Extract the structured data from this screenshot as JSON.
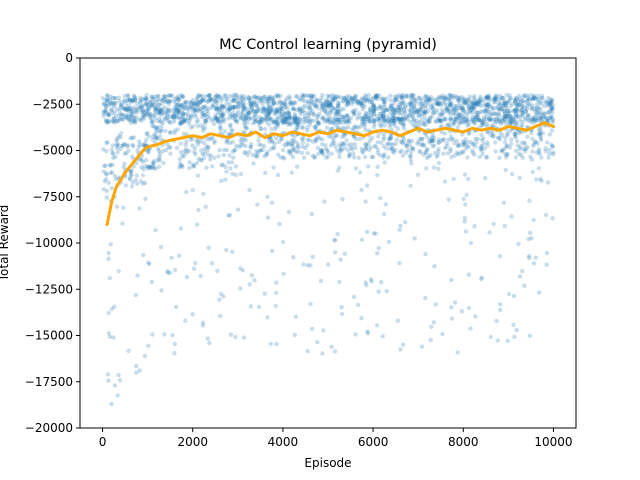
{
  "chart_data": {
    "type": "scatter",
    "title": "MC Control learning (pyramid)",
    "xlabel": "Episode",
    "ylabel": "Total Reward",
    "xlim": [
      -500,
      10500
    ],
    "ylim": [
      -20000,
      0
    ],
    "xticks": [
      0,
      2000,
      4000,
      6000,
      8000,
      10000
    ],
    "yticks": [
      0,
      -2500,
      -5000,
      -7500,
      -10000,
      -12500,
      -15000,
      -17500,
      -20000
    ],
    "grid": false,
    "series": [
      {
        "kind": "scatter",
        "color": "#1f77b4",
        "opacity": 0.25,
        "approximate": true,
        "episode_range": [
          0,
          10000
        ],
        "reward_clip": [
          -1500,
          -20000
        ],
        "segments": [
          {
            "x": [
              0,
              300
            ],
            "typical": -4500,
            "spread": 3500,
            "min": -20000
          },
          {
            "x": [
              300,
              1000
            ],
            "typical": -4000,
            "spread": 3000,
            "min": -19000
          },
          {
            "x": [
              1000,
              3000
            ],
            "typical": -3500,
            "spread": 2500,
            "min": -16000
          },
          {
            "x": [
              3000,
              10000
            ],
            "typical": -3200,
            "spread": 2200,
            "min": -16000
          }
        ]
      },
      {
        "kind": "line",
        "color": "#ffa500",
        "x": [
          100,
          200,
          300,
          400,
          500,
          600,
          700,
          800,
          900,
          1000,
          1200,
          1400,
          1600,
          1800,
          2000,
          2200,
          2400,
          2600,
          2800,
          3000,
          3200,
          3400,
          3600,
          3800,
          4000,
          4200,
          4400,
          4600,
          4800,
          5000,
          5200,
          5400,
          5600,
          5800,
          6000,
          6200,
          6400,
          6600,
          6800,
          7000,
          7200,
          7400,
          7600,
          7800,
          8000,
          8200,
          8400,
          8600,
          8800,
          9000,
          9200,
          9400,
          9600,
          9800,
          10000
        ],
        "y": [
          -9000,
          -7800,
          -7000,
          -6600,
          -6200,
          -5900,
          -5600,
          -5300,
          -5000,
          -4800,
          -4700,
          -4500,
          -4400,
          -4300,
          -4200,
          -4300,
          -4100,
          -4200,
          -4300,
          -4100,
          -4200,
          -4000,
          -4300,
          -4100,
          -4200,
          -4000,
          -4100,
          -4200,
          -4000,
          -4100,
          -3900,
          -4000,
          -4100,
          -4200,
          -4000,
          -3900,
          -4000,
          -4200,
          -4000,
          -3800,
          -4000,
          -3900,
          -3800,
          -3900,
          -4000,
          -3800,
          -3900,
          -3800,
          -3900,
          -3700,
          -3800,
          -3900,
          -3700,
          -3500,
          -3700
        ]
      }
    ]
  }
}
